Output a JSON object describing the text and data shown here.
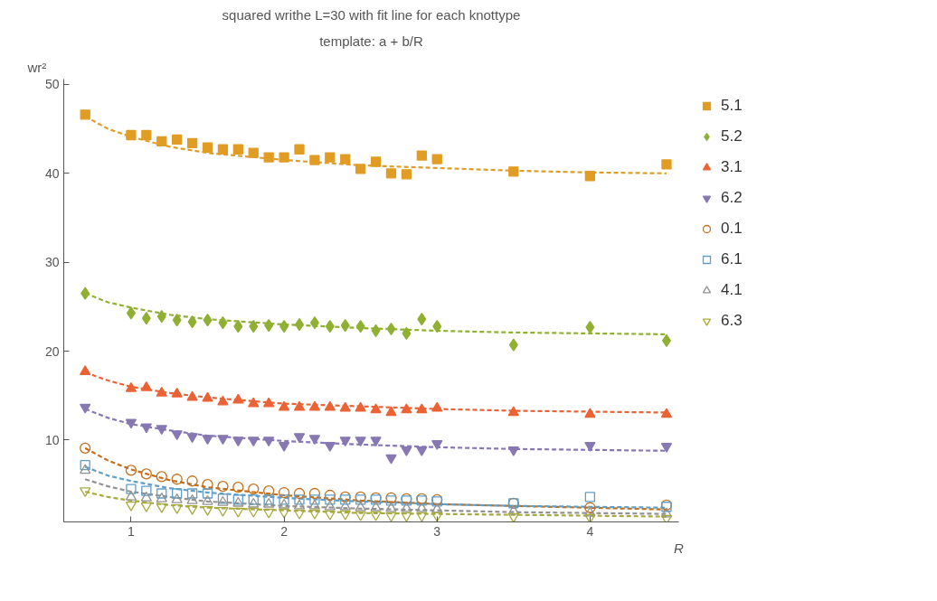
{
  "chart_data": {
    "type": "scatter",
    "title": "squared writhe L=30 with fit line for each knottype",
    "subtitle": "template: a + b/R",
    "xlabel": "R",
    "ylabel": "wr²",
    "x": [
      0.7,
      1.0,
      1.1,
      1.2,
      1.3,
      1.4,
      1.5,
      1.6,
      1.7,
      1.8,
      1.9,
      2.0,
      2.1,
      2.2,
      2.3,
      2.4,
      2.5,
      2.6,
      2.7,
      2.8,
      2.9,
      3.0,
      3.5,
      4.0,
      4.5
    ],
    "xlim": [
      0.56,
      4.58
    ],
    "ylim": [
      0.8,
      50.6
    ],
    "xticks": [
      1,
      2,
      3,
      4
    ],
    "yticks": [
      10,
      20,
      30,
      40,
      50
    ],
    "grid": false,
    "legend": "right",
    "series": [
      {
        "name": "5.1",
        "color": "#e19c24",
        "marker": "square",
        "values": [
          46.6,
          44.3,
          44.3,
          43.6,
          43.8,
          43.4,
          42.9,
          42.7,
          42.7,
          42.3,
          41.8,
          41.8,
          42.7,
          41.5,
          41.8,
          41.6,
          40.5,
          41.3,
          40.0,
          39.9,
          42.0,
          41.6,
          40.2,
          39.7,
          41.0
        ]
      },
      {
        "name": "5.2",
        "color": "#8fb032",
        "marker": "diamond",
        "values": [
          26.5,
          24.3,
          23.7,
          23.9,
          23.5,
          23.3,
          23.5,
          23.2,
          22.8,
          22.8,
          22.9,
          22.8,
          23.0,
          23.2,
          22.8,
          22.9,
          22.8,
          22.3,
          22.5,
          22.0,
          23.6,
          22.8,
          20.7,
          22.7,
          21.2
        ]
      },
      {
        "name": "3.1",
        "color": "#eb6235",
        "marker": "triangle",
        "values": [
          17.7,
          15.8,
          15.9,
          15.3,
          15.2,
          14.8,
          14.7,
          14.3,
          14.5,
          14.1,
          14.1,
          13.7,
          13.7,
          13.7,
          13.7,
          13.6,
          13.6,
          13.4,
          13.1,
          13.4,
          13.4,
          13.6,
          13.1,
          12.9,
          12.9
        ]
      },
      {
        "name": "6.2",
        "color": "#8778b3",
        "marker": "triangle_down",
        "values": [
          13.7,
          12.0,
          11.5,
          11.3,
          10.7,
          10.4,
          10.2,
          10.2,
          10.0,
          10.0,
          10.0,
          9.4,
          10.4,
          10.2,
          9.4,
          10.0,
          10.0,
          10.0,
          8.0,
          8.9,
          8.9,
          9.6,
          8.9,
          9.4,
          9.3
        ]
      },
      {
        "name": "0.1",
        "color": "#c56e1a",
        "marker": "circle_open",
        "values": [
          9.1,
          6.6,
          6.2,
          5.9,
          5.6,
          5.4,
          5.0,
          4.8,
          4.7,
          4.5,
          4.3,
          4.1,
          4.0,
          4.0,
          3.8,
          3.6,
          3.6,
          3.5,
          3.5,
          3.4,
          3.4,
          3.3,
          2.9,
          2.4,
          2.7
        ]
      },
      {
        "name": "6.1",
        "color": "#5e9ec8",
        "marker": "square_open",
        "values": [
          7.2,
          4.5,
          4.3,
          4.0,
          4.0,
          4.0,
          4.0,
          3.4,
          3.3,
          3.3,
          3.3,
          3.3,
          3.3,
          3.3,
          3.3,
          3.3,
          3.3,
          3.3,
          3.2,
          3.2,
          3.2,
          3.1,
          2.9,
          3.6,
          2.5
        ]
      },
      {
        "name": "4.1",
        "color": "#929292",
        "marker": "triangle_open",
        "values": [
          6.6,
          3.6,
          3.5,
          3.4,
          3.3,
          3.2,
          3.1,
          3.0,
          2.9,
          2.8,
          2.8,
          2.7,
          2.6,
          2.6,
          2.5,
          2.5,
          2.4,
          2.4,
          2.3,
          2.3,
          2.3,
          2.2,
          2.0,
          1.8,
          1.7
        ]
      },
      {
        "name": "6.3",
        "color": "#a8ab3c",
        "marker": "triangle_down_open",
        "values": [
          4.3,
          2.7,
          2.6,
          2.5,
          2.4,
          2.3,
          2.2,
          2.1,
          2.0,
          2.0,
          1.9,
          1.9,
          1.8,
          1.8,
          1.7,
          1.7,
          1.6,
          1.6,
          1.5,
          1.5,
          1.5,
          1.5,
          1.4,
          1.3,
          1.2
        ]
      },
      {
        "type": "line",
        "line_style": "dashed",
        "color": "#e19c24",
        "x": [
          0.7,
          0.85,
          1,
          1.25,
          1.5,
          2,
          2.5,
          3,
          3.5,
          4,
          4.5
        ],
        "values": [
          46.4,
          45.0,
          44.1,
          43.0,
          42.3,
          41.5,
          40.9,
          40.6,
          40.3,
          40.1,
          40.0
        ]
      },
      {
        "type": "line",
        "line_style": "dashed",
        "color": "#8fb032",
        "x": [
          0.7,
          0.85,
          1,
          1.25,
          1.5,
          2,
          2.5,
          3,
          3.5,
          4,
          4.5
        ],
        "values": [
          26.5,
          25.5,
          24.9,
          24.1,
          23.6,
          23.0,
          22.6,
          22.3,
          22.1,
          22.0,
          21.9
        ]
      },
      {
        "type": "line",
        "line_style": "dashed",
        "color": "#eb6235",
        "x": [
          0.7,
          0.85,
          1,
          1.25,
          1.5,
          2,
          2.5,
          3,
          3.5,
          4,
          4.5
        ],
        "values": [
          17.6,
          16.7,
          16.0,
          15.3,
          14.8,
          14.1,
          13.8,
          13.5,
          13.3,
          13.2,
          13.1
        ]
      },
      {
        "type": "line",
        "line_style": "dashed",
        "color": "#8778b3",
        "x": [
          0.7,
          0.85,
          1,
          1.25,
          1.5,
          2,
          2.5,
          3,
          3.5,
          4,
          4.5
        ],
        "values": [
          13.5,
          12.5,
          11.8,
          11.1,
          10.5,
          9.9,
          9.5,
          9.2,
          9.0,
          8.9,
          8.8
        ]
      },
      {
        "type": "line",
        "line_style": "dashed",
        "color": "#c56e1a",
        "x": [
          0.7,
          0.85,
          1,
          1.25,
          1.5,
          2,
          2.5,
          3,
          3.5,
          4,
          4.5
        ],
        "values": [
          9.1,
          7.7,
          6.7,
          5.5,
          4.7,
          3.8,
          3.2,
          2.8,
          2.6,
          2.4,
          2.2
        ]
      },
      {
        "type": "line",
        "line_style": "dashed",
        "color": "#5e9ec8",
        "x": [
          0.7,
          0.85,
          1,
          1.25,
          1.5,
          2,
          2.5,
          3,
          3.5,
          4,
          4.5
        ],
        "values": [
          7.0,
          6.0,
          5.4,
          4.6,
          4.1,
          3.5,
          3.1,
          2.8,
          2.6,
          2.5,
          2.4
        ]
      },
      {
        "type": "line",
        "line_style": "dashed",
        "color": "#929292",
        "x": [
          0.7,
          0.85,
          1,
          1.25,
          1.5,
          2,
          2.5,
          3,
          3.5,
          4,
          4.5
        ],
        "values": [
          5.6,
          4.8,
          4.2,
          3.6,
          3.1,
          2.6,
          2.3,
          2.1,
          1.9,
          1.8,
          1.7
        ]
      },
      {
        "type": "line",
        "line_style": "dashed",
        "color": "#a8ab3c",
        "x": [
          0.7,
          0.85,
          1,
          1.25,
          1.5,
          2,
          2.5,
          3,
          3.5,
          4,
          4.5
        ],
        "values": [
          4.2,
          3.6,
          3.2,
          2.7,
          2.4,
          2.1,
          1.8,
          1.7,
          1.6,
          1.5,
          1.4
        ]
      }
    ]
  }
}
